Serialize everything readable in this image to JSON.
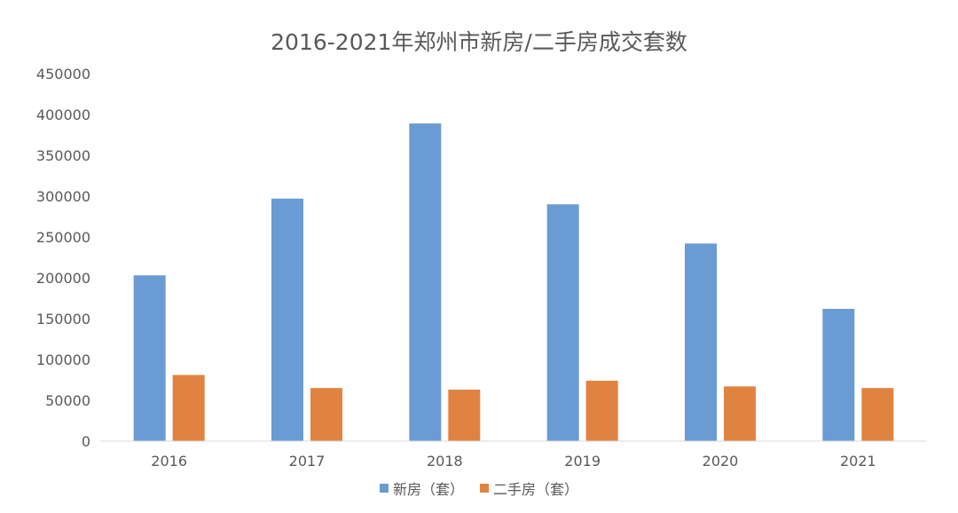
{
  "chart_data": {
    "type": "bar",
    "title": "2016-2021年郑州市新房/二手房成交套数",
    "xlabel": "",
    "ylabel": "",
    "categories": [
      "2016",
      "2017",
      "2018",
      "2019",
      "2020",
      "2021"
    ],
    "ylim": [
      0,
      450000
    ],
    "yticks": [
      "0",
      "50000",
      "100000",
      "150000",
      "200000",
      "250000",
      "300000",
      "350000",
      "400000",
      "450000"
    ],
    "grid": false,
    "legend_position": "bottom",
    "series": [
      {
        "name": "新房（套）",
        "color": "#6A9BD2",
        "values": [
          203000,
          297000,
          389000,
          290000,
          242000,
          162000
        ]
      },
      {
        "name": "二手房（套）",
        "color": "#E08340",
        "values": [
          81000,
          65000,
          63000,
          74000,
          67000,
          65000
        ]
      }
    ]
  }
}
